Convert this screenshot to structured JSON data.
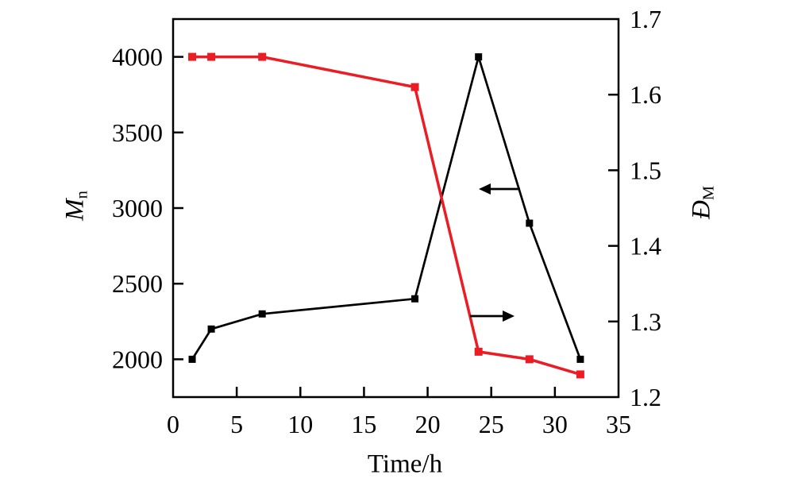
{
  "figure": {
    "background": "#ffffff",
    "left_axis_title": {
      "main": "M",
      "sub": "n"
    },
    "right_axis_title": {
      "main": "Đ",
      "sub": "M"
    },
    "x_axis_title": "Time/h"
  },
  "chart_data": {
    "type": "line",
    "title": "",
    "grid": false,
    "legend": "none",
    "x": [
      1.5,
      3,
      7,
      19,
      24,
      28,
      32
    ],
    "series": [
      {
        "name": "Mn",
        "axis": "left",
        "color": "#000000",
        "marker": "square",
        "values": [
          2000,
          2200,
          2300,
          2400,
          4000,
          2900,
          2000
        ]
      },
      {
        "name": "ĐM",
        "axis": "right",
        "color": "#ec1c24",
        "marker": "square",
        "values": [
          1.65,
          1.65,
          1.65,
          1.61,
          1.26,
          1.25,
          1.23
        ]
      }
    ],
    "x_axis": {
      "label": "Time/h",
      "range": [
        0,
        35
      ],
      "ticks": [
        0,
        5,
        10,
        15,
        20,
        25,
        30,
        35
      ],
      "tick_labels": [
        "0",
        "5",
        "10",
        "15",
        "20",
        "25",
        "30",
        "35"
      ]
    },
    "left_axis": {
      "label": "Mn",
      "range": [
        1750,
        4250
      ],
      "ticks": [
        2000,
        2500,
        3000,
        3500,
        4000
      ],
      "tick_labels": [
        "2000",
        "2500",
        "3000",
        "3500",
        "4000"
      ]
    },
    "right_axis": {
      "label": "ĐM",
      "range": [
        1.2,
        1.7
      ],
      "ticks": [
        1.2,
        1.3,
        1.4,
        1.5,
        1.6,
        1.7
      ],
      "tick_labels": [
        "1.2",
        "1.3",
        "1.4",
        "1.5",
        "1.6",
        "1.7"
      ]
    },
    "annotations": [
      {
        "name": "left-axis-arrow",
        "direction": "left",
        "color": "#000000",
        "x_tail": 655,
        "x_tip": 603,
        "y": 238
      },
      {
        "name": "right-axis-arrow",
        "direction": "right",
        "color": "#000000",
        "x_tail": 592,
        "x_tip": 648,
        "y": 398
      }
    ]
  }
}
